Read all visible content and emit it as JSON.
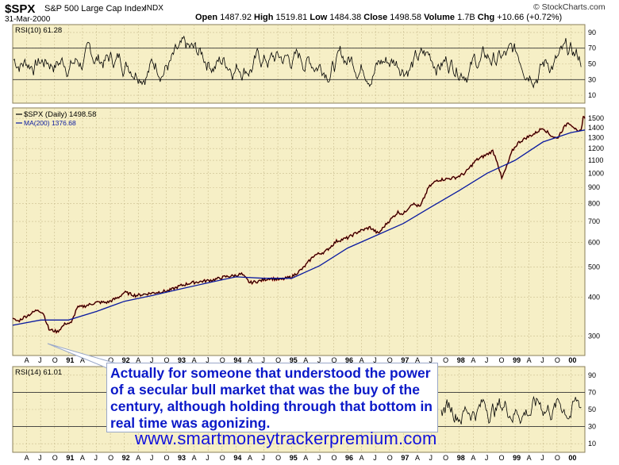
{
  "header": {
    "symbol": "$SPX",
    "name": "S&P 500 Large Cap Index",
    "exchange": "INDX",
    "date": "31-Mar-2000",
    "source": "© StockCharts.com",
    "quote": {
      "open_label": "Open",
      "open": "1487.92",
      "high_label": "High",
      "high": "1519.81",
      "low_label": "Low",
      "low": "1484.38",
      "close_label": "Close",
      "close": "1498.58",
      "volume_label": "Volume",
      "volume": "1.7B",
      "chg_label": "Chg",
      "chg": "+10.66 (+0.72%)"
    }
  },
  "colors": {
    "panel_bg": "#f6efc6",
    "grid": "#c9bd8e",
    "price": "#000000",
    "price_down": "#cc0000",
    "ma": "#0a1aa0",
    "callout_text": "#0b19c8",
    "watermark": "#1111dd"
  },
  "chart_data": [
    {
      "type": "line",
      "panel": "top-indicator",
      "legend": "RSI(10) 61.28",
      "yticks": [
        10,
        30,
        50,
        70,
        90
      ],
      "ylim": [
        0,
        100
      ],
      "reference_lines": [
        30,
        70
      ]
    },
    {
      "type": "line",
      "panel": "price",
      "log_scale": true,
      "ylim": [
        260,
        1620
      ],
      "yticks": [
        300,
        400,
        500,
        600,
        700,
        800,
        900,
        1000,
        1100,
        1200,
        1300,
        1400,
        1500
      ],
      "xlim": [
        1990.0,
        2000.25
      ],
      "series": [
        {
          "name": "$SPX (Daily) 1498.58",
          "x": [
            1990.0,
            1990.1,
            1990.2,
            1990.3,
            1990.45,
            1990.55,
            1990.65,
            1990.8,
            1990.95,
            1991.05,
            1991.15,
            1991.3,
            1991.5,
            1991.7,
            1991.9,
            1992.0,
            1992.2,
            1992.4,
            1992.6,
            1992.8,
            1993.0,
            1993.2,
            1993.4,
            1993.6,
            1993.8,
            1994.0,
            1994.1,
            1994.25,
            1994.4,
            1994.6,
            1994.8,
            1995.0,
            1995.2,
            1995.4,
            1995.6,
            1995.8,
            1996.0,
            1996.2,
            1996.4,
            1996.55,
            1996.7,
            1996.9,
            1997.0,
            1997.15,
            1997.3,
            1997.45,
            1997.6,
            1997.8,
            1997.95,
            1998.1,
            1998.3,
            1998.5,
            1998.6,
            1998.68,
            1998.76,
            1998.85,
            1998.95,
            1999.05,
            1999.2,
            1999.35,
            1999.5,
            1999.62,
            1999.75,
            1999.85,
            1999.95,
            2000.05,
            2000.12,
            2000.18,
            2000.22,
            2000.25
          ],
          "values": [
            340,
            335,
            345,
            352,
            365,
            355,
            315,
            310,
            330,
            330,
            370,
            375,
            385,
            385,
            400,
            415,
            405,
            410,
            415,
            420,
            435,
            445,
            450,
            455,
            465,
            470,
            475,
            445,
            450,
            460,
            455,
            465,
            495,
            545,
            560,
            605,
            620,
            650,
            670,
            640,
            690,
            750,
            740,
            800,
            780,
            900,
            950,
            960,
            970,
            1000,
            1100,
            1150,
            1180,
            1090,
            960,
            1050,
            1180,
            1250,
            1300,
            1340,
            1400,
            1330,
            1290,
            1380,
            1460,
            1410,
            1350,
            1370,
            1520,
            1498.58
          ]
        },
        {
          "name": "MA(200) 1376.68",
          "x": [
            1990.0,
            1990.5,
            1991.0,
            1991.5,
            1992.0,
            1992.5,
            1993.0,
            1993.5,
            1994.0,
            1994.5,
            1995.0,
            1995.5,
            1996.0,
            1996.5,
            1997.0,
            1997.5,
            1998.0,
            1998.5,
            1999.0,
            1999.5,
            2000.0,
            2000.25
          ],
          "values": [
            325,
            338,
            338,
            360,
            388,
            405,
            425,
            445,
            465,
            460,
            460,
            505,
            575,
            630,
            690,
            780,
            880,
            1000,
            1100,
            1260,
            1350,
            1376.68
          ]
        }
      ]
    },
    {
      "type": "line",
      "panel": "bottom-indicator",
      "legend": "RSI(14) 61.01",
      "yticks": [
        10,
        30,
        50,
        70,
        90
      ],
      "ylim": [
        0,
        100
      ],
      "reference_lines": [
        30,
        70
      ]
    }
  ],
  "xaxis": {
    "labels": [
      "A",
      "J",
      "O",
      "91",
      "A",
      "J",
      "O",
      "92",
      "A",
      "J",
      "O",
      "93",
      "A",
      "J",
      "O",
      "94",
      "A",
      "J",
      "O",
      "95",
      "A",
      "J",
      "O",
      "96",
      "A",
      "J",
      "O",
      "97",
      "A",
      "J",
      "O",
      "98",
      "A",
      "J",
      "O",
      "99",
      "A",
      "J",
      "O",
      "00"
    ],
    "positions": [
      1990.25,
      1990.5,
      1990.75,
      1991.0,
      1991.25,
      1991.5,
      1991.75,
      1992.0,
      1992.25,
      1992.5,
      1992.75,
      1993.0,
      1993.25,
      1993.5,
      1993.75,
      1994.0,
      1994.25,
      1994.5,
      1994.75,
      1995.0,
      1995.25,
      1995.5,
      1995.75,
      1996.0,
      1996.25,
      1996.5,
      1996.75,
      1997.0,
      1997.25,
      1997.5,
      1997.75,
      1998.0,
      1998.25,
      1998.5,
      1998.75,
      1999.0,
      1999.25,
      1999.5,
      1999.75,
      2000.0
    ]
  },
  "annotation": {
    "text": "Actually for someone that understood the power of a secular bull market that was the buy of the century, although holding through that bottom in real time was agonizing."
  },
  "watermark": "www.smartmoneytrackerpremium.com"
}
